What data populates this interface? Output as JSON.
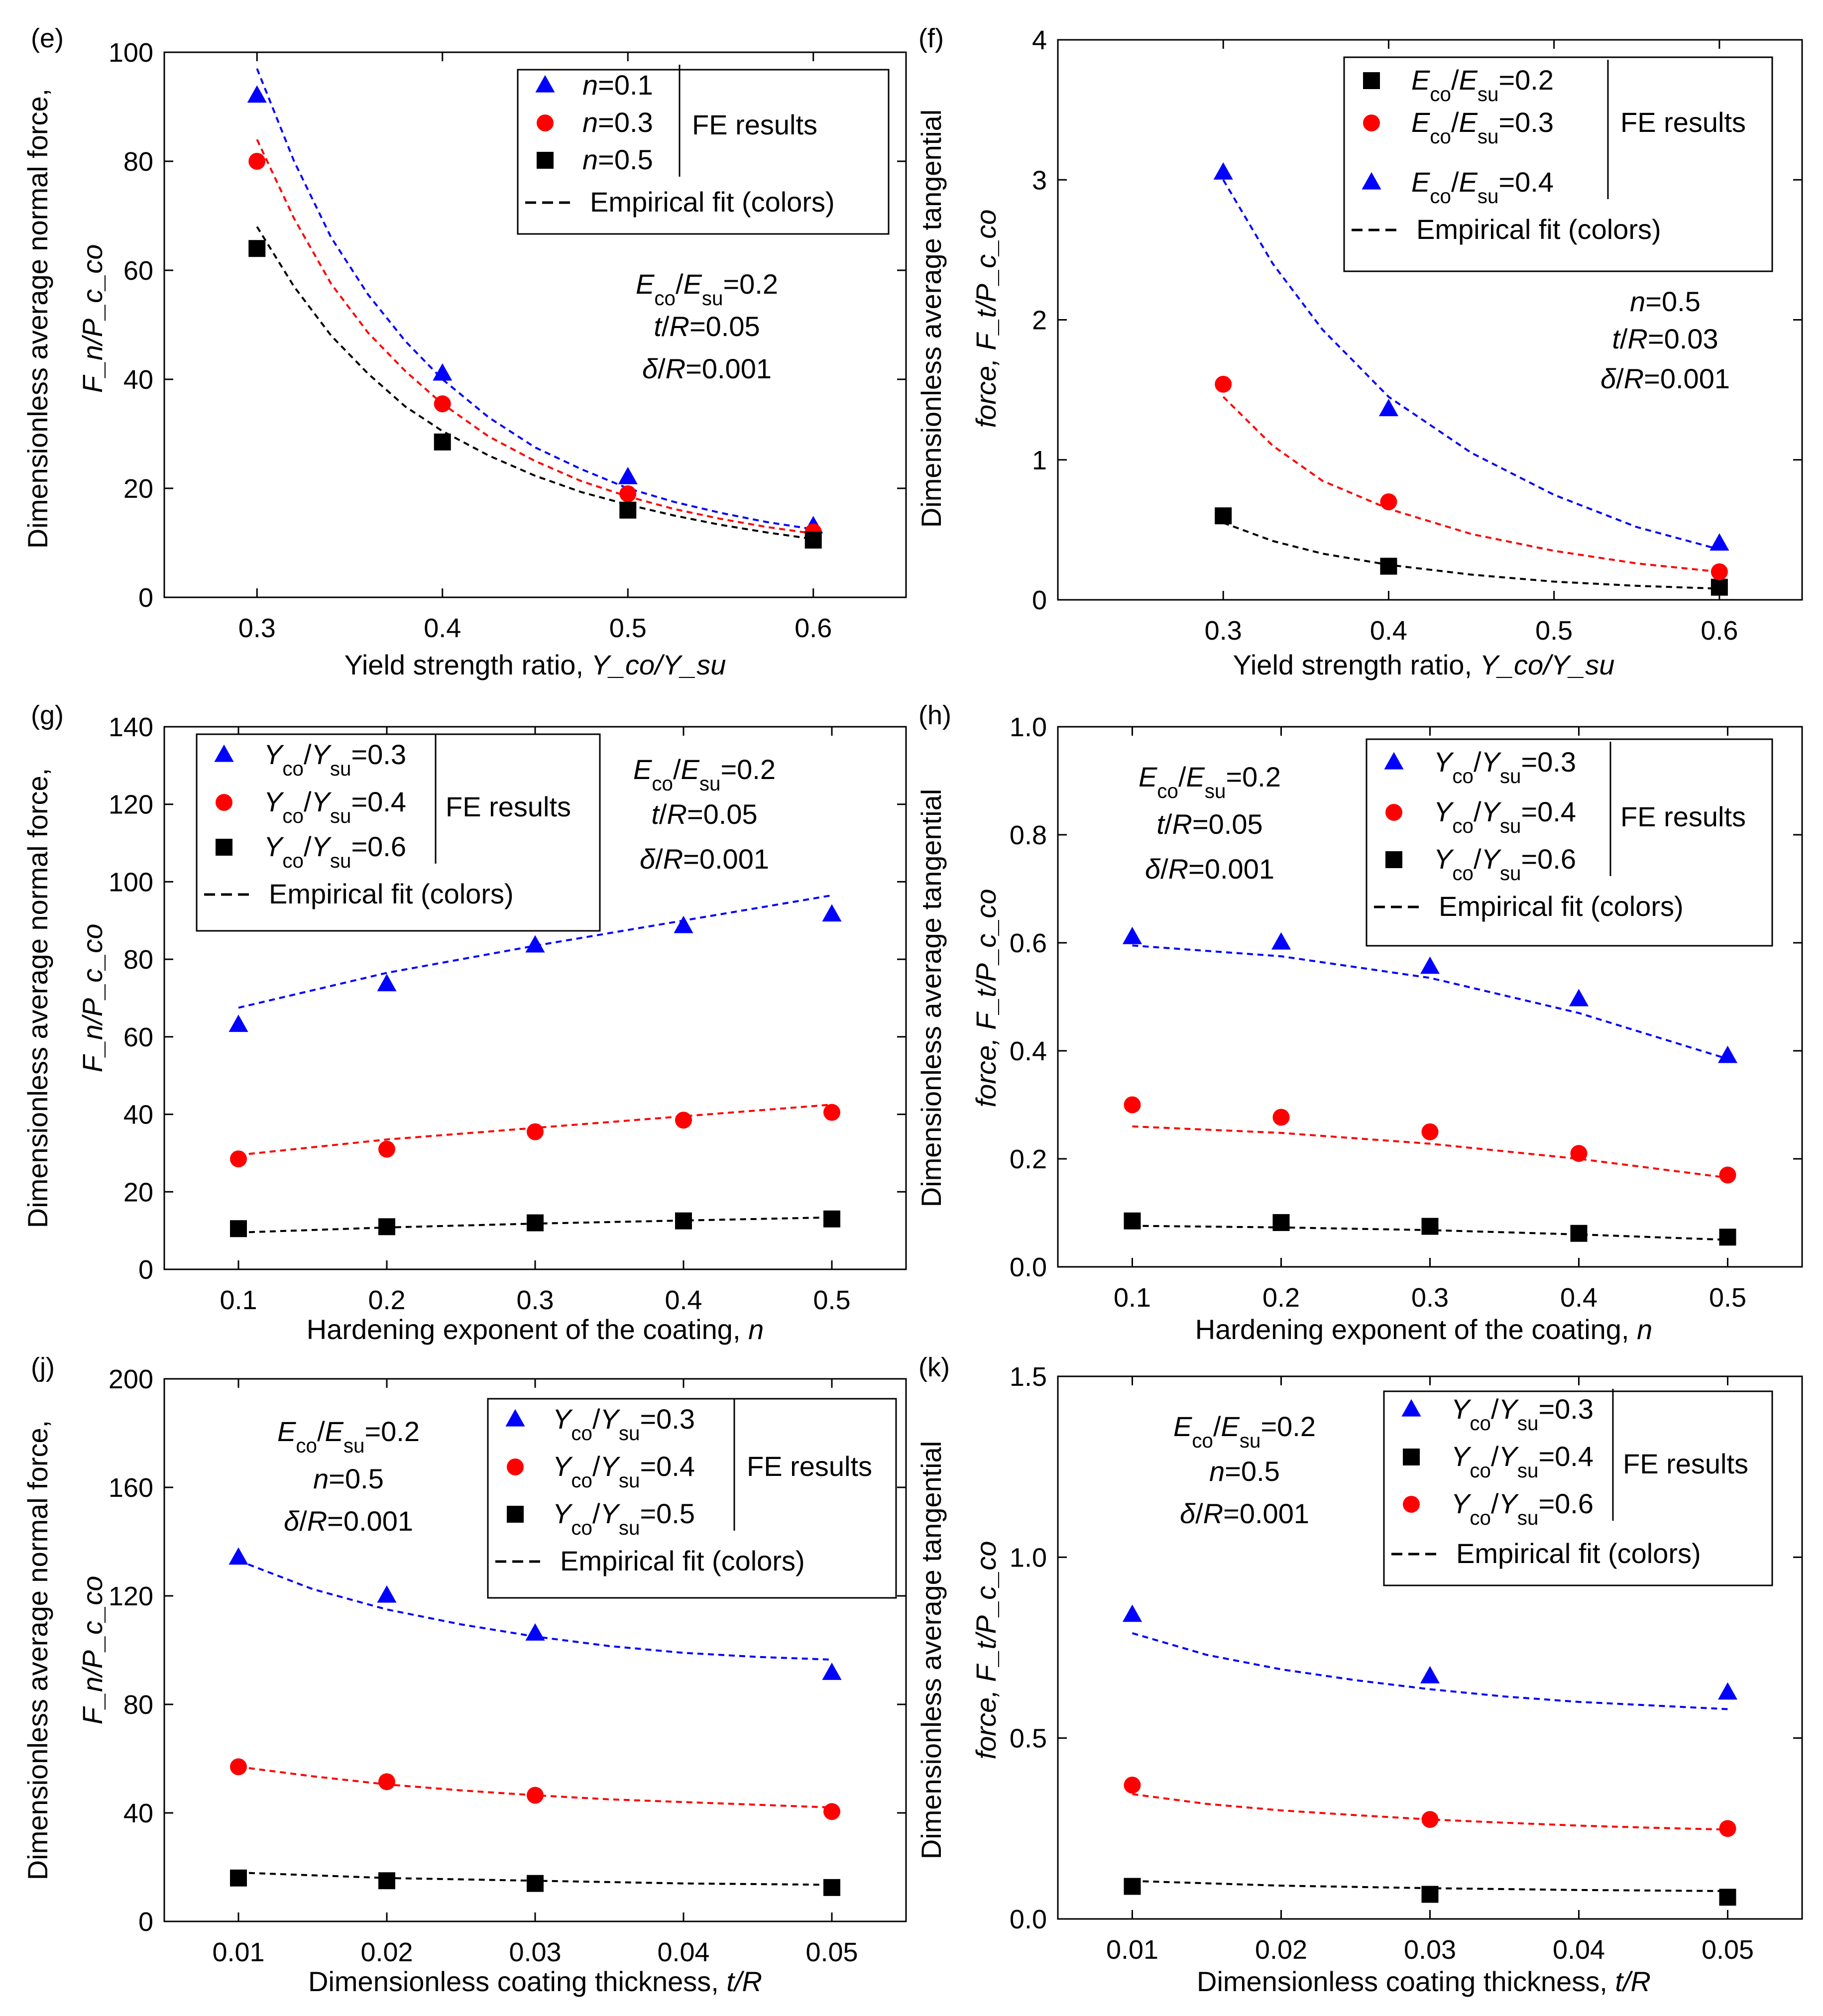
{
  "chart_data": [
    {
      "id": "e",
      "type": "scatter",
      "panel_label": "(e)",
      "xlabel": "Yield strength ratio, ",
      "xlabel_math": "Y_co/Y_su",
      "ylabel": "Dimensionless average normal force,",
      "ylabel_math": "F_n/P_c_co",
      "xlim": [
        0.25,
        0.65
      ],
      "ylim": [
        0,
        100
      ],
      "xticks": [
        0.3,
        0.4,
        0.5,
        0.6
      ],
      "yticks": [
        0,
        20,
        40,
        60,
        80,
        100
      ],
      "xtick_labels": [
        "0.3",
        "0.4",
        "0.5",
        "0.6"
      ],
      "ytick_labels": [
        "0",
        "20",
        "40",
        "60",
        "80",
        "100"
      ],
      "series": [
        {
          "name": "n=0.1",
          "label_math": "n=0.1",
          "color": "#0000ff",
          "marker": "triangle",
          "x": [
            0.3,
            0.4,
            0.5,
            0.6
          ],
          "y": [
            92,
            41,
            22,
            13
          ],
          "fit_x": [
            0.3,
            0.32,
            0.34,
            0.36,
            0.38,
            0.4,
            0.425,
            0.45,
            0.475,
            0.5,
            0.525,
            0.55,
            0.575,
            0.6
          ],
          "fit_y": [
            97,
            80,
            66,
            55.5,
            47,
            40,
            33,
            27.5,
            23.5,
            20,
            17.5,
            15.5,
            13.8,
            12.5
          ]
        },
        {
          "name": "n=0.3",
          "label_math": "n=0.3",
          "color": "#ff0000",
          "marker": "circle",
          "x": [
            0.3,
            0.4,
            0.5,
            0.6
          ],
          "y": [
            80,
            35.5,
            19,
            12
          ],
          "fit_x": [
            0.3,
            0.32,
            0.34,
            0.36,
            0.38,
            0.4,
            0.425,
            0.45,
            0.475,
            0.5,
            0.525,
            0.55,
            0.575,
            0.6
          ],
          "fit_y": [
            84,
            69.5,
            57.5,
            48.5,
            41.5,
            35.5,
            29.5,
            25,
            21.3,
            18.5,
            16.2,
            14.4,
            12.9,
            11.7
          ]
        },
        {
          "name": "n=0.5",
          "label_math": "n=0.5",
          "color": "#000000",
          "marker": "square",
          "x": [
            0.3,
            0.4,
            0.5,
            0.6
          ],
          "y": [
            64,
            28.5,
            16,
            10.5
          ],
          "fit_x": [
            0.3,
            0.32,
            0.34,
            0.36,
            0.38,
            0.4,
            0.425,
            0.45,
            0.475,
            0.5,
            0.525,
            0.55,
            0.575,
            0.6
          ],
          "fit_y": [
            68,
            57,
            48,
            41,
            35,
            30.5,
            26,
            22.3,
            19.3,
            17,
            15,
            13.3,
            11.9,
            10.7
          ]
        }
      ],
      "legend": {
        "placement": "top-right",
        "group_label": "FE results",
        "fit_label": "Empirical fit (colors)"
      },
      "annotations": [
        {
          "text": "E_co/E_su=0.2",
          "math": "E_co/E_su=0.2"
        },
        {
          "text": "t/R=0.05",
          "math": "t/R=0.05"
        },
        {
          "text": "δ/R=0.001",
          "math": "δ/R=0.001"
        }
      ]
    },
    {
      "id": "f",
      "type": "scatter",
      "panel_label": "(f)",
      "xlabel": "Yield strength ratio, ",
      "xlabel_math": "Y_co/Y_su",
      "ylabel": "Dimensionless average tangential",
      "ylabel_math": "force, F_t/P_c_co",
      "xlim": [
        0.2,
        0.65
      ],
      "ylim": [
        0,
        4
      ],
      "xticks": [
        0.3,
        0.4,
        0.5,
        0.6
      ],
      "yticks": [
        0,
        1,
        2,
        3,
        4
      ],
      "xtick_labels": [
        "0.3",
        "0.4",
        "0.5",
        "0.6"
      ],
      "ytick_labels": [
        "0",
        "1",
        "2",
        "3",
        "4"
      ],
      "series": [
        {
          "name": "Eco/Esu=0.2",
          "label_math": "E_co/E_su=0.2",
          "color": "#000000",
          "marker": "square",
          "x": [
            0.3,
            0.4,
            0.6
          ],
          "y": [
            0.6,
            0.24,
            0.09
          ],
          "fit_x": [
            0.3,
            0.33,
            0.36,
            0.4,
            0.45,
            0.5,
            0.55,
            0.6
          ],
          "fit_y": [
            0.55,
            0.42,
            0.33,
            0.25,
            0.18,
            0.13,
            0.1,
            0.08
          ]
        },
        {
          "name": "Eco/Esu=0.3",
          "label_math": "E_co/E_su=0.3",
          "color": "#ff0000",
          "marker": "circle",
          "x": [
            0.3,
            0.4,
            0.6
          ],
          "y": [
            1.54,
            0.7,
            0.2
          ],
          "fit_x": [
            0.3,
            0.33,
            0.36,
            0.4,
            0.45,
            0.5,
            0.55,
            0.6
          ],
          "fit_y": [
            1.45,
            1.1,
            0.85,
            0.65,
            0.47,
            0.35,
            0.26,
            0.2
          ]
        },
        {
          "name": "Eco/Esu=0.4",
          "label_math": "E_co/E_su=0.4",
          "color": "#0000ff",
          "marker": "triangle",
          "x": [
            0.3,
            0.4,
            0.6
          ],
          "y": [
            3.05,
            1.36,
            0.4
          ],
          "fit_x": [
            0.3,
            0.33,
            0.36,
            0.4,
            0.45,
            0.5,
            0.55,
            0.6
          ],
          "fit_y": [
            3.0,
            2.4,
            1.93,
            1.45,
            1.05,
            0.75,
            0.52,
            0.36
          ]
        }
      ],
      "legend": {
        "placement": "top-right",
        "group_label": "FE results",
        "fit_label": "Empirical fit (colors)"
      },
      "annotations": [
        {
          "text": "n=0.5",
          "math": "n=0.5"
        },
        {
          "text": "t/R=0.03",
          "math": "t/R=0.03"
        },
        {
          "text": "δ/R=0.001",
          "math": "δ/R=0.001"
        }
      ]
    },
    {
      "id": "g",
      "type": "scatter",
      "panel_label": "(g)",
      "xlabel": "Hardening exponent of the coating, ",
      "xlabel_math": "n",
      "ylabel": "Dimensionless average normal force,",
      "ylabel_math": "F_n/P_c_co",
      "xlim": [
        0.05,
        0.55
      ],
      "ylim": [
        0,
        140
      ],
      "xticks": [
        0.1,
        0.2,
        0.3,
        0.4,
        0.5
      ],
      "yticks": [
        0,
        20,
        40,
        60,
        80,
        100,
        120,
        140
      ],
      "xtick_labels": [
        "0.1",
        "0.2",
        "0.3",
        "0.4",
        "0.5"
      ],
      "ytick_labels": [
        "0",
        "20",
        "40",
        "60",
        "80",
        "100",
        "120",
        "140"
      ],
      "series": [
        {
          "name": "Yco/Ysu=0.3",
          "label_math": "Y_co/Y_su=0.3",
          "color": "#0000ff",
          "marker": "triangle",
          "x": [
            0.1,
            0.2,
            0.3,
            0.4,
            0.5
          ],
          "y": [
            63,
            73.5,
            83.5,
            88.5,
            91.5
          ],
          "fit_x": [
            0.1,
            0.2,
            0.3,
            0.4,
            0.5
          ],
          "fit_y": [
            67.5,
            76.5,
            83.5,
            90,
            96.5
          ]
        },
        {
          "name": "Yco/Ysu=0.4",
          "label_math": "Y_co/Y_su=0.4",
          "color": "#ff0000",
          "marker": "circle",
          "x": [
            0.1,
            0.2,
            0.3,
            0.4,
            0.5
          ],
          "y": [
            28.5,
            31,
            35.5,
            38.5,
            40.5
          ],
          "fit_x": [
            0.1,
            0.2,
            0.3,
            0.4,
            0.5
          ],
          "fit_y": [
            29.5,
            33.5,
            36.5,
            39.5,
            42.5
          ]
        },
        {
          "name": "Yco/Ysu=0.6",
          "label_math": "Y_co/Y_su=0.6",
          "color": "#000000",
          "marker": "square",
          "x": [
            0.1,
            0.2,
            0.3,
            0.4,
            0.5
          ],
          "y": [
            10.5,
            11,
            12,
            12.5,
            13
          ],
          "fit_x": [
            0.1,
            0.2,
            0.3,
            0.4,
            0.5
          ],
          "fit_y": [
            9.5,
            10.8,
            11.8,
            12.6,
            13.4
          ]
        }
      ],
      "legend": {
        "placement": "top-left",
        "group_label": "FE results",
        "fit_label": "Empirical fit (colors)"
      },
      "annotations": [
        {
          "text": "E_co/E_su=0.2",
          "math": "E_co/E_su=0.2"
        },
        {
          "text": "t/R=0.05",
          "math": "t/R=0.05"
        },
        {
          "text": "δ/R=0.001",
          "math": "δ/R=0.001"
        }
      ]
    },
    {
      "id": "h",
      "type": "scatter",
      "panel_label": "(h)",
      "xlabel": "Hardening exponent of the coating, ",
      "xlabel_math": "n",
      "ylabel": "Dimensionless average tangential",
      "ylabel_math": "force, F_t/P_c_co",
      "xlim": [
        0.05,
        0.55
      ],
      "ylim": [
        0,
        1.0
      ],
      "xticks": [
        0.1,
        0.2,
        0.3,
        0.4,
        0.5
      ],
      "yticks": [
        0,
        0.2,
        0.4,
        0.6,
        0.8,
        1.0
      ],
      "xtick_labels": [
        "0.1",
        "0.2",
        "0.3",
        "0.4",
        "0.5"
      ],
      "ytick_labels": [
        "0.0",
        "0.2",
        "0.4",
        "0.6",
        "0.8",
        "1.0"
      ],
      "series": [
        {
          "name": "Yco/Ysu=0.3",
          "label_math": "Y_co/Y_su=0.3",
          "color": "#0000ff",
          "marker": "triangle",
          "x": [
            0.1,
            0.2,
            0.3,
            0.4,
            0.5
          ],
          "y": [
            0.61,
            0.6,
            0.555,
            0.495,
            0.39
          ],
          "fit_x": [
            0.1,
            0.2,
            0.3,
            0.4,
            0.5
          ],
          "fit_y": [
            0.595,
            0.575,
            0.535,
            0.47,
            0.385
          ]
        },
        {
          "name": "Yco/Ysu=0.4",
          "label_math": "Y_co/Y_su=0.4",
          "color": "#ff0000",
          "marker": "circle",
          "x": [
            0.1,
            0.2,
            0.3,
            0.4,
            0.5
          ],
          "y": [
            0.3,
            0.277,
            0.25,
            0.21,
            0.17
          ],
          "fit_x": [
            0.1,
            0.2,
            0.3,
            0.4,
            0.5
          ],
          "fit_y": [
            0.26,
            0.248,
            0.228,
            0.2,
            0.165
          ]
        },
        {
          "name": "Yco/Ysu=0.6",
          "label_math": "Y_co/Y_su=0.6",
          "color": "#000000",
          "marker": "square",
          "x": [
            0.1,
            0.2,
            0.3,
            0.4,
            0.5
          ],
          "y": [
            0.085,
            0.082,
            0.075,
            0.062,
            0.055
          ],
          "fit_x": [
            0.1,
            0.2,
            0.3,
            0.4,
            0.5
          ],
          "fit_y": [
            0.076,
            0.073,
            0.068,
            0.06,
            0.05
          ]
        }
      ],
      "legend": {
        "placement": "top-right",
        "group_label": "FE results",
        "fit_label": "Empirical fit (colors)"
      },
      "annotations": [
        {
          "text": "E_co/E_su=0.2",
          "math": "E_co/E_su=0.2"
        },
        {
          "text": "t/R=0.05",
          "math": "t/R=0.05"
        },
        {
          "text": "δ/R=0.001",
          "math": "δ/R=0.001"
        }
      ]
    },
    {
      "id": "j",
      "type": "scatter",
      "panel_label": "(j)",
      "xlabel": "Dimensionless coating thickness, ",
      "xlabel_math": "t/R",
      "ylabel": "Dimensionless average normal force,",
      "ylabel_math": "F_n/P_c_co",
      "xlim": [
        0.005,
        0.055
      ],
      "ylim": [
        0,
        200
      ],
      "xticks": [
        0.01,
        0.02,
        0.03,
        0.04,
        0.05
      ],
      "yticks": [
        0,
        40,
        80,
        120,
        160,
        200
      ],
      "xtick_labels": [
        "0.01",
        "0.02",
        "0.03",
        "0.04",
        "0.05"
      ],
      "ytick_labels": [
        "0",
        "40",
        "80",
        "120",
        "160",
        "200"
      ],
      "series": [
        {
          "name": "Yco/Ysu=0.3",
          "label_math": "Y_co/Y_su=0.3",
          "color": "#0000ff",
          "marker": "triangle",
          "x": [
            0.01,
            0.02,
            0.03,
            0.05
          ],
          "y": [
            134,
            120,
            106,
            91.5
          ],
          "fit_x": [
            0.01,
            0.015,
            0.02,
            0.025,
            0.03,
            0.035,
            0.04,
            0.045,
            0.05
          ],
          "fit_y": [
            133,
            122.5,
            115,
            109.5,
            105,
            101.5,
            99,
            97.5,
            96.5
          ]
        },
        {
          "name": "Yco/Ysu=0.4",
          "label_math": "Y_co/Y_su=0.4",
          "color": "#ff0000",
          "marker": "circle",
          "x": [
            0.01,
            0.02,
            0.03,
            0.05
          ],
          "y": [
            57,
            51.5,
            46.5,
            40.5
          ],
          "fit_x": [
            0.01,
            0.015,
            0.02,
            0.025,
            0.03,
            0.035,
            0.04,
            0.045,
            0.05
          ],
          "fit_y": [
            57,
            53.5,
            50.5,
            48.3,
            46.5,
            45,
            44,
            43,
            42
          ]
        },
        {
          "name": "Yco/Ysu=0.5",
          "label_math": "Y_co/Y_su=0.5",
          "color": "#000000",
          "marker": "square",
          "x": [
            0.01,
            0.02,
            0.03,
            0.05
          ],
          "y": [
            16,
            15,
            14,
            12.5
          ],
          "fit_x": [
            0.01,
            0.02,
            0.03,
            0.04,
            0.05
          ],
          "fit_y": [
            18,
            16,
            15,
            14,
            13.5
          ]
        }
      ],
      "legend": {
        "placement": "top-right",
        "group_label": "FE results",
        "fit_label": "Empirical fit (colors)"
      },
      "annotations": [
        {
          "text": "E_co/E_su=0.2",
          "math": "E_co/E_su=0.2"
        },
        {
          "text": "n=0.5",
          "math": "n=0.5"
        },
        {
          "text": "δ/R=0.001",
          "math": "δ/R=0.001"
        }
      ]
    },
    {
      "id": "k",
      "type": "scatter",
      "panel_label": "(k)",
      "xlabel": "Dimensionless coating thickness, ",
      "xlabel_math": "t/R",
      "ylabel": "Dimensionless average tangential",
      "ylabel_math": "force, F_t/P_c_co",
      "xlim": [
        0.005,
        0.055
      ],
      "ylim": [
        0,
        1.5
      ],
      "xticks": [
        0.01,
        0.02,
        0.03,
        0.04,
        0.05
      ],
      "yticks": [
        0,
        0.5,
        1.0,
        1.5
      ],
      "xtick_labels": [
        "0.01",
        "0.02",
        "0.03",
        "0.04",
        "0.05"
      ],
      "ytick_labels": [
        "0.0",
        "0.5",
        "1.0",
        "1.5"
      ],
      "series": [
        {
          "name": "Yco/Ysu=0.3",
          "label_math": "Y_co/Y_su=0.3",
          "color": "#0000ff",
          "marker": "triangle",
          "x": [
            0.01,
            0.03,
            0.05
          ],
          "y": [
            0.84,
            0.67,
            0.625
          ],
          "fit_x": [
            0.01,
            0.015,
            0.02,
            0.025,
            0.03,
            0.035,
            0.04,
            0.045,
            0.05
          ],
          "fit_y": [
            0.79,
            0.73,
            0.69,
            0.66,
            0.635,
            0.615,
            0.6,
            0.59,
            0.58
          ]
        },
        {
          "name": "Yco/Ysu=0.4",
          "label_math": "Y_co/Y_su=0.4",
          "color": "#000000",
          "marker": "square",
          "x": [
            0.01,
            0.03,
            0.05
          ],
          "y": [
            0.09,
            0.068,
            0.06
          ],
          "fit_x": [
            0.01,
            0.02,
            0.03,
            0.04,
            0.05
          ],
          "fit_y": [
            0.105,
            0.092,
            0.085,
            0.08,
            0.077
          ]
        },
        {
          "name": "Yco/Ysu=0.6",
          "label_math": "Y_co/Y_su=0.6",
          "color": "#ff0000",
          "marker": "circle",
          "x": [
            0.01,
            0.03,
            0.05
          ],
          "y": [
            0.37,
            0.275,
            0.25
          ],
          "fit_x": [
            0.01,
            0.015,
            0.02,
            0.025,
            0.03,
            0.035,
            0.04,
            0.045,
            0.05
          ],
          "fit_y": [
            0.345,
            0.318,
            0.3,
            0.287,
            0.275,
            0.266,
            0.258,
            0.252,
            0.247
          ]
        }
      ],
      "legend": {
        "placement": "top-right",
        "group_label": "FE results",
        "fit_label": "Empirical fit (colors)"
      },
      "annotations": [
        {
          "text": "E_co/E_su=0.2",
          "math": "E_co/E_su=0.2"
        },
        {
          "text": "n=0.5",
          "math": "n=0.5"
        },
        {
          "text": "δ/R=0.001",
          "math": "δ/R=0.001"
        }
      ]
    }
  ]
}
